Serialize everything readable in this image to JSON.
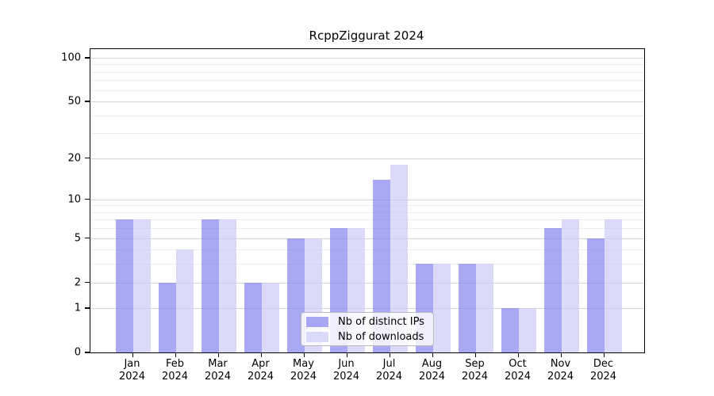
{
  "chart_data": {
    "type": "bar",
    "title": "RcppZiggurat 2024",
    "scale": "log1p",
    "grid": true,
    "categories": [
      "Jan 2024",
      "Feb 2024",
      "Mar 2024",
      "Apr 2024",
      "May 2024",
      "Jun 2024",
      "Jul 2024",
      "Aug 2024",
      "Sep 2024",
      "Oct 2024",
      "Nov 2024",
      "Dec 2024"
    ],
    "series": [
      {
        "name": "Nb of distinct IPs",
        "key": "distinct-ips",
        "color": "#a9a9f3",
        "fill": "rgba(127,127,240,0.68)",
        "values": [
          7,
          2,
          7,
          2,
          5,
          6,
          14,
          3,
          3,
          1,
          6,
          5
        ]
      },
      {
        "name": "Nb of downloads",
        "key": "downloads",
        "color": "#dbdbf8",
        "fill": "rgba(202,202,246,0.68)",
        "values": [
          7,
          4,
          7,
          2,
          5,
          6,
          18,
          3,
          3,
          1,
          7,
          7
        ]
      }
    ],
    "y_axis": {
      "tick_labels": [
        "100",
        "50",
        "20",
        "10",
        "5",
        "2",
        "1",
        "0"
      ],
      "ticks": [
        100,
        50,
        20,
        10,
        5,
        2,
        1,
        0
      ],
      "major_gridlines": [
        100,
        50,
        20,
        10,
        5,
        2,
        1
      ],
      "minor_gridlines": [
        90,
        80,
        70,
        60,
        40,
        30,
        9,
        8,
        7,
        6,
        4,
        3
      ],
      "ylim": [
        0,
        115
      ]
    },
    "legend": {
      "position": "bottom-center"
    },
    "colors": {
      "major_grid": "#d6d6d6",
      "minor_grid": "#ededed",
      "axis": "#000000"
    }
  }
}
